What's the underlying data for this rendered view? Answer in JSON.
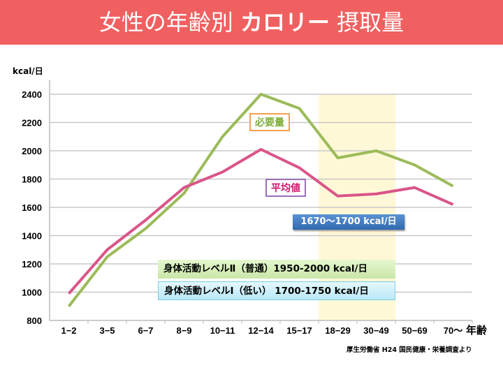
{
  "header": {
    "title_pre": "女性の年齢別 ",
    "title_bold": "カロリー",
    "title_post": " 摂取量"
  },
  "chart_data": {
    "type": "line",
    "title": "女性の年齢別 カロリー 摂取量",
    "ylabel": "kcal/日",
    "xlabel": "年齢",
    "ylim": [
      800,
      2400
    ],
    "yticks": [
      "800",
      "1000",
      "1200",
      "1400",
      "1600",
      "1800",
      "2000",
      "2200",
      "2400"
    ],
    "categories": [
      "1−2",
      "3−5",
      "6−7",
      "8−9",
      "10−11",
      "12−14",
      "15−17",
      "18−29",
      "30−49",
      "50−69",
      "70〜"
    ],
    "series": [
      {
        "name": "必要量",
        "color": "#9bbb59",
        "values": [
          900,
          1250,
          1450,
          1700,
          2100,
          2400,
          2300,
          1950,
          2000,
          1900,
          1750
        ]
      },
      {
        "name": "平均値",
        "color": "#d9558a",
        "values": [
          990,
          1300,
          1510,
          1740,
          1850,
          2010,
          1880,
          1680,
          1695,
          1740,
          1620
        ]
      }
    ],
    "highlight": {
      "categories": [
        "18−29",
        "30−49"
      ],
      "color": "#fff8d6"
    },
    "annotations": {
      "avg_range": "1670〜1700 kcal/日",
      "level2": "身体活動レベルⅡ（普通）1950-2000 kcal/日",
      "level1": "身体活動レベルⅠ（低い） 1700-1750 kcal/日"
    },
    "source": "厚生労働省 H24 国民健康・栄養調査より"
  }
}
